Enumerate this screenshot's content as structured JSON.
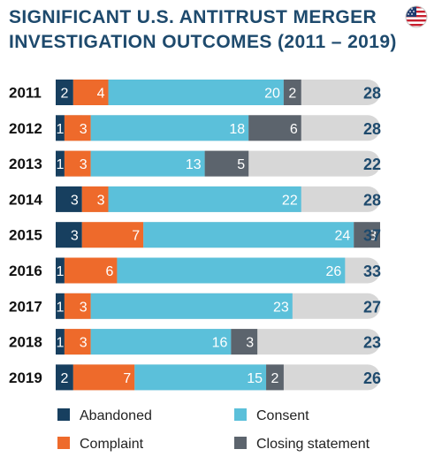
{
  "title_line1": "SIGNIFICANT U.S. ANTITRUST MERGER",
  "title_line2": "INVESTIGATION OUTCOMES (2011 – 2019)",
  "flag_icon": "us-flag-icon",
  "colors": {
    "Abandoned": "#173f5f",
    "Complaint": "#ee6a2b",
    "Consent": "#5bc0da",
    "Closing statement": "#5c646d",
    "track": "#d7d7d7",
    "total_text": "#1e4a6d",
    "year_text": "#111111"
  },
  "chart_data": {
    "type": "bar",
    "orientation": "horizontal",
    "stacked": true,
    "title": "SIGNIFICANT U.S. ANTITRUST MERGER INVESTIGATION OUTCOMES (2011 – 2019)",
    "categories": [
      "2011",
      "2012",
      "2013",
      "2014",
      "2015",
      "2016",
      "2017",
      "2018",
      "2019"
    ],
    "series": [
      {
        "name": "Abandoned",
        "values": [
          2,
          1,
          1,
          3,
          3,
          1,
          1,
          1,
          2
        ]
      },
      {
        "name": "Complaint",
        "values": [
          4,
          3,
          3,
          3,
          7,
          6,
          3,
          3,
          7
        ]
      },
      {
        "name": "Consent",
        "values": [
          20,
          18,
          13,
          22,
          24,
          26,
          23,
          16,
          15
        ]
      },
      {
        "name": "Closing statement",
        "values": [
          2,
          6,
          5,
          0,
          3,
          0,
          0,
          3,
          2
        ]
      }
    ],
    "totals": [
      28,
      28,
      22,
      28,
      37,
      33,
      27,
      23,
      26
    ],
    "legend": [
      "Abandoned",
      "Complaint",
      "Consent",
      "Closing statement"
    ],
    "legend_position": "bottom",
    "xlim": [
      0,
      37
    ],
    "grid": false
  }
}
